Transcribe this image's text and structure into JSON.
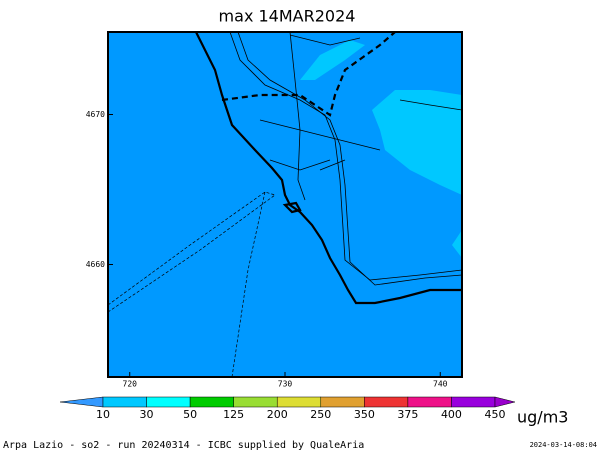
{
  "map": {
    "title": "max 14MAR2024",
    "xlim": [
      718.6,
      741.4
    ],
    "ylim": [
      4652.5,
      4675.5
    ],
    "xticks": [
      720,
      730,
      740
    ],
    "yticks": [
      4660,
      4670
    ],
    "colorbar": {
      "levels": [
        10,
        30,
        50,
        125,
        200,
        250,
        350,
        375,
        400,
        450
      ],
      "colors": [
        "#3399ff",
        "#00c8ff",
        "#00ffff",
        "#00cc00",
        "#99dd33",
        "#dddd33",
        "#e0a030",
        "#ee3333",
        "#ee1188",
        "#9900dd",
        "#9900cc"
      ],
      "unit": "ug/m3"
    },
    "footer": "Arpa Lazio - so2 - run 20240314 - ICBC supplied by QualeAria",
    "timestamp": "2024-03-14-08:04"
  }
}
